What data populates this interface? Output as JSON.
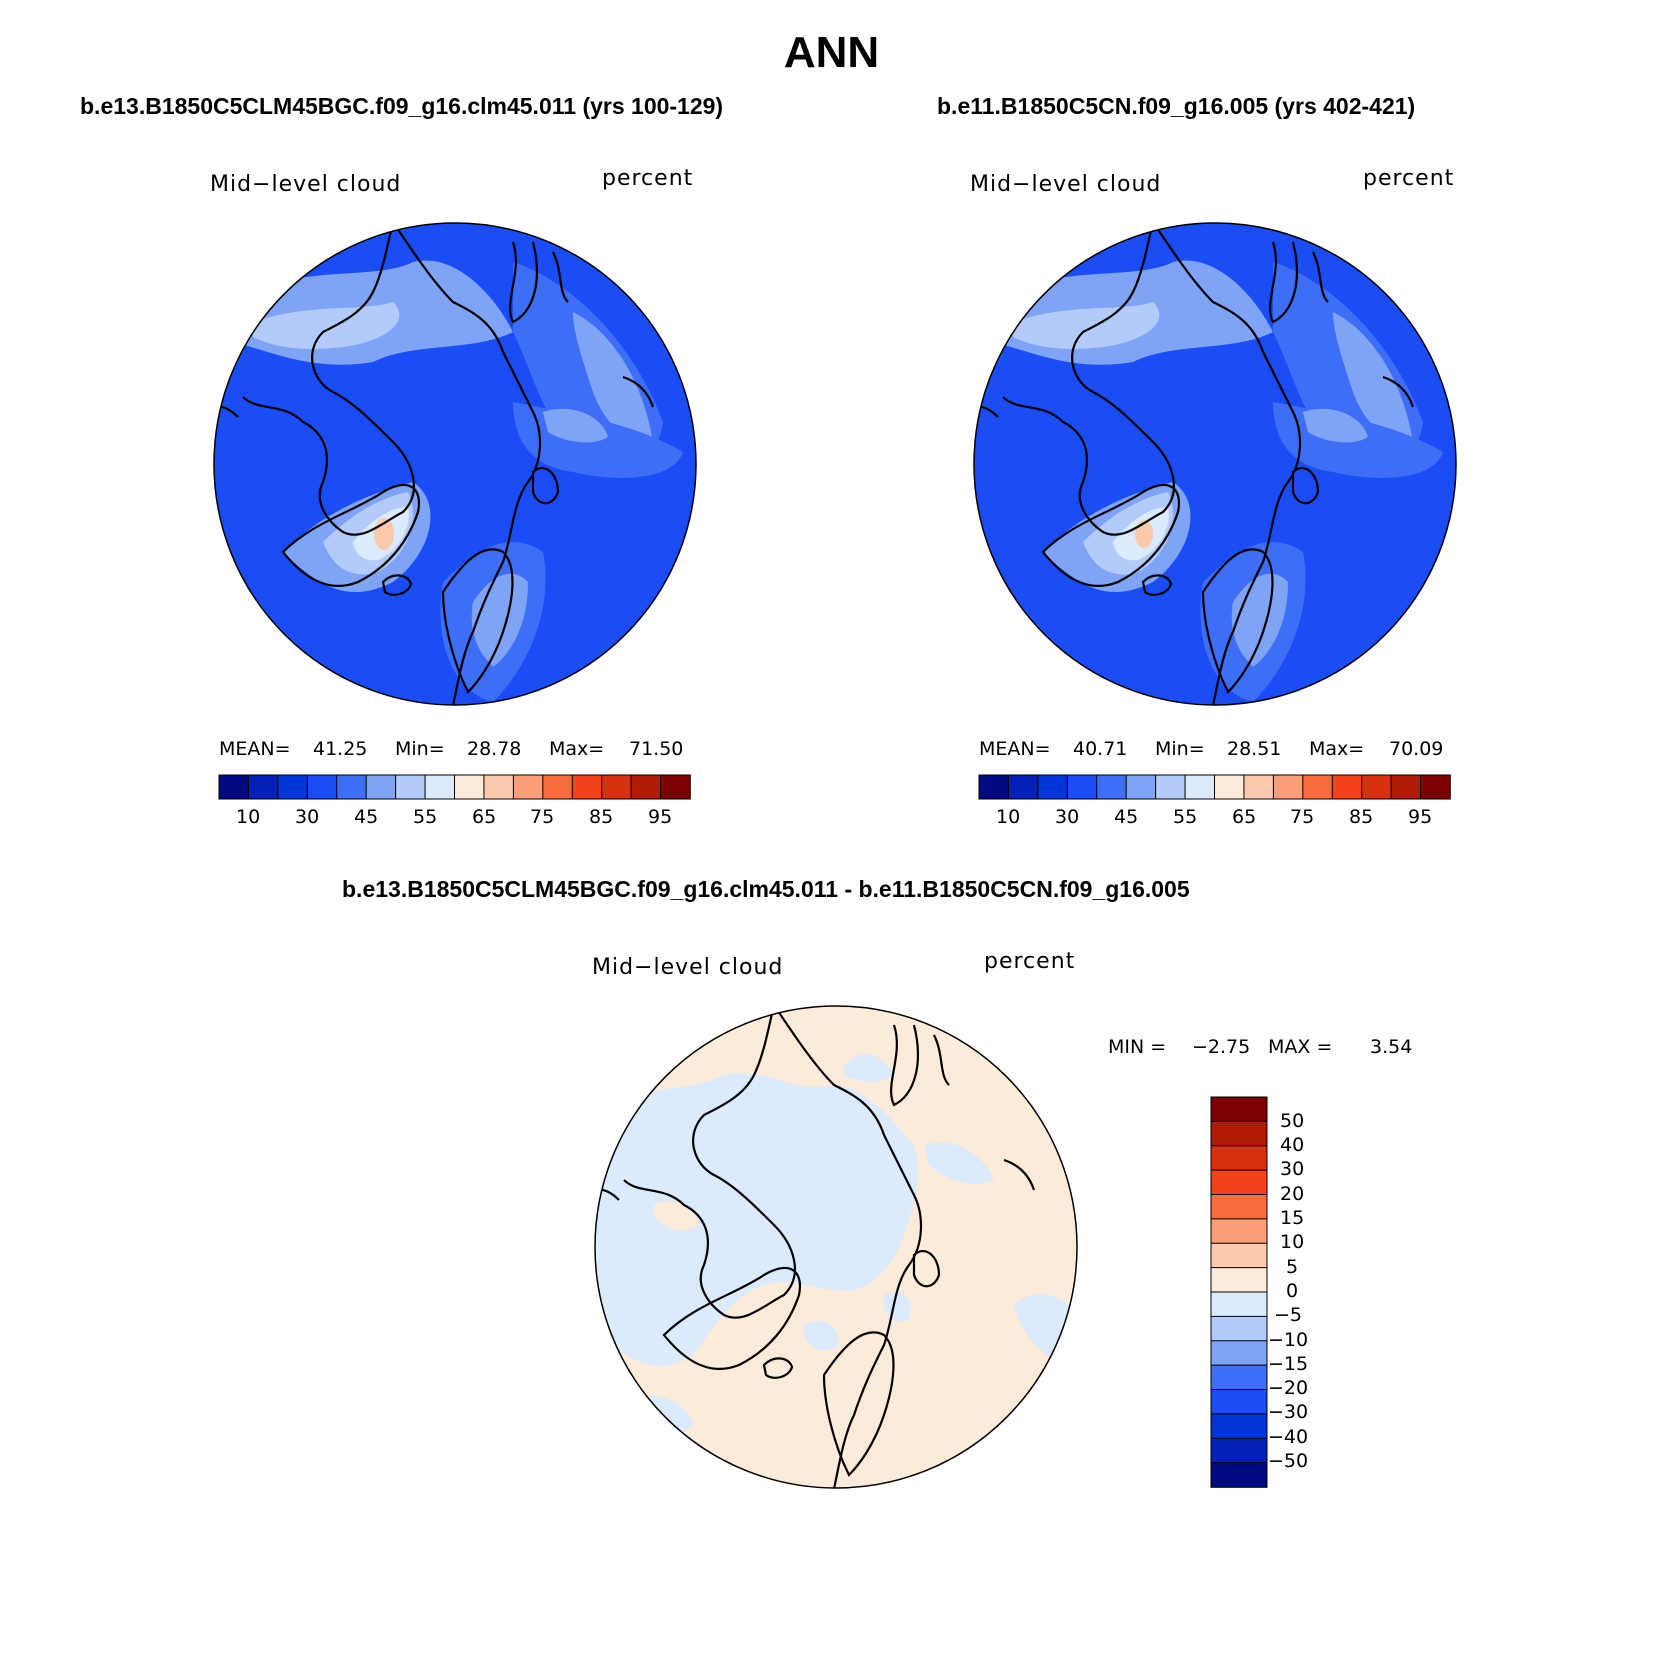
{
  "figure": {
    "title": "ANN"
  },
  "panels": [
    {
      "case_title": "b.e13.B1850C5CLM45BGC.f09_g16.clm45.011 (yrs 100-129)",
      "variable": "Mid−level cloud",
      "units": "percent",
      "stats": {
        "mean_label": "MEAN=",
        "mean": "41.25",
        "min_label": "Min=",
        "min": "28.78",
        "max_label": "Max=",
        "max": "71.50"
      },
      "colorbar_ticks": [
        "10",
        "30",
        "45",
        "55",
        "65",
        "75",
        "85",
        "95"
      ]
    },
    {
      "case_title": "b.e11.B1850C5CN.f09_g16.005 (yrs 402-421)",
      "variable": "Mid−level cloud",
      "units": "percent",
      "stats": {
        "mean_label": "MEAN=",
        "mean": "40.71",
        "min_label": "Min=",
        "min": "28.51",
        "max_label": "Max=",
        "max": "70.09"
      },
      "colorbar_ticks": [
        "10",
        "30",
        "45",
        "55",
        "65",
        "75",
        "85",
        "95"
      ]
    }
  ],
  "difference": {
    "case_title": "b.e13.B1850C5CLM45BGC.f09_g16.clm45.011 - b.e11.B1850C5CN.f09_g16.005",
    "variable": "Mid−level cloud",
    "units": "percent",
    "minmax": {
      "min_label": "MIN =",
      "min": "−2.75",
      "max_label": "MAX =",
      "max": "3.54"
    },
    "colorbar_ticks": [
      "50",
      "40",
      "30",
      "20",
      "15",
      "10",
      "5",
      "0",
      "−5",
      "−10",
      "−15",
      "−20",
      "−30",
      "−40",
      "−50"
    ]
  },
  "colors": {
    "palette": [
      "#000a80",
      "#0020b8",
      "#0036d8",
      "#1a4df5",
      "#3d6ef5",
      "#7fa3f5",
      "#b3cbfa",
      "#dbeafc",
      "#fdebd9",
      "#fcc9ad",
      "#fa9e7a",
      "#fa6c3e",
      "#f2421a",
      "#d63010",
      "#b01a06",
      "#7d0000"
    ],
    "diff_positive": "#fdebd9",
    "diff_negative": "#dbeafc"
  }
}
